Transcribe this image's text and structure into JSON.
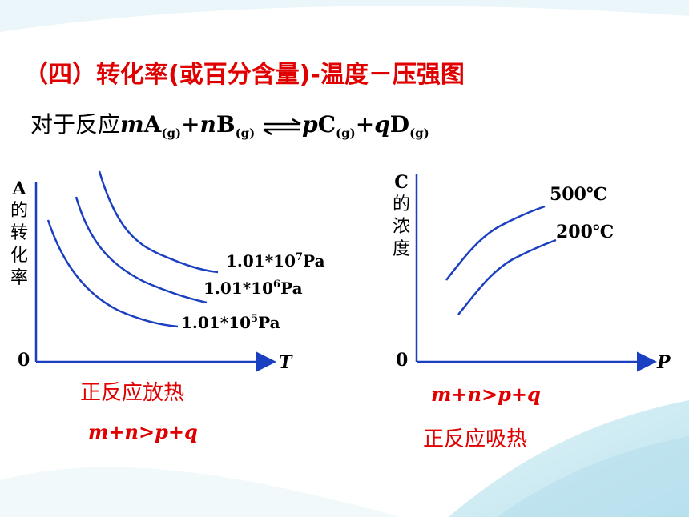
{
  "title": "（四）转化率(或百分含量)-温度－压强图",
  "reaction": {
    "prefix": "对于反应",
    "m": "m",
    "A": "A",
    "g1": "(g)",
    "plus1": "+",
    "n": "n",
    "B": "B",
    "g2": "(g)",
    "p": "p",
    "C": "C",
    "g3": "(g)",
    "plus2": "+",
    "q": "q",
    "D": "D",
    "g4": "(g)"
  },
  "left_graph": {
    "y_label_chars": [
      "A",
      "的",
      "转",
      "化",
      "率"
    ],
    "origin": "0",
    "x_label": "T",
    "curve_labels": [
      {
        "base": "1.01*10",
        "exp": "7",
        "unit": "Pa"
      },
      {
        "base": "1.01*10",
        "exp": "6",
        "unit": "Pa"
      },
      {
        "base": "1.01*10",
        "exp": "5",
        "unit": "Pa"
      }
    ],
    "conclusion": "正反应放热",
    "relation": "m+n>p+q"
  },
  "right_graph": {
    "y_label_chars": [
      "C",
      "的",
      "浓",
      "度"
    ],
    "origin": "0",
    "x_label": "P",
    "curve_labels": [
      "500℃",
      "200℃"
    ],
    "relation": "m+n>p+q",
    "conclusion": "正反应吸热"
  },
  "colors": {
    "title": "#e00000",
    "curve": "#1a3fc0",
    "axis": "#1a3fc0",
    "text": "#000000"
  }
}
